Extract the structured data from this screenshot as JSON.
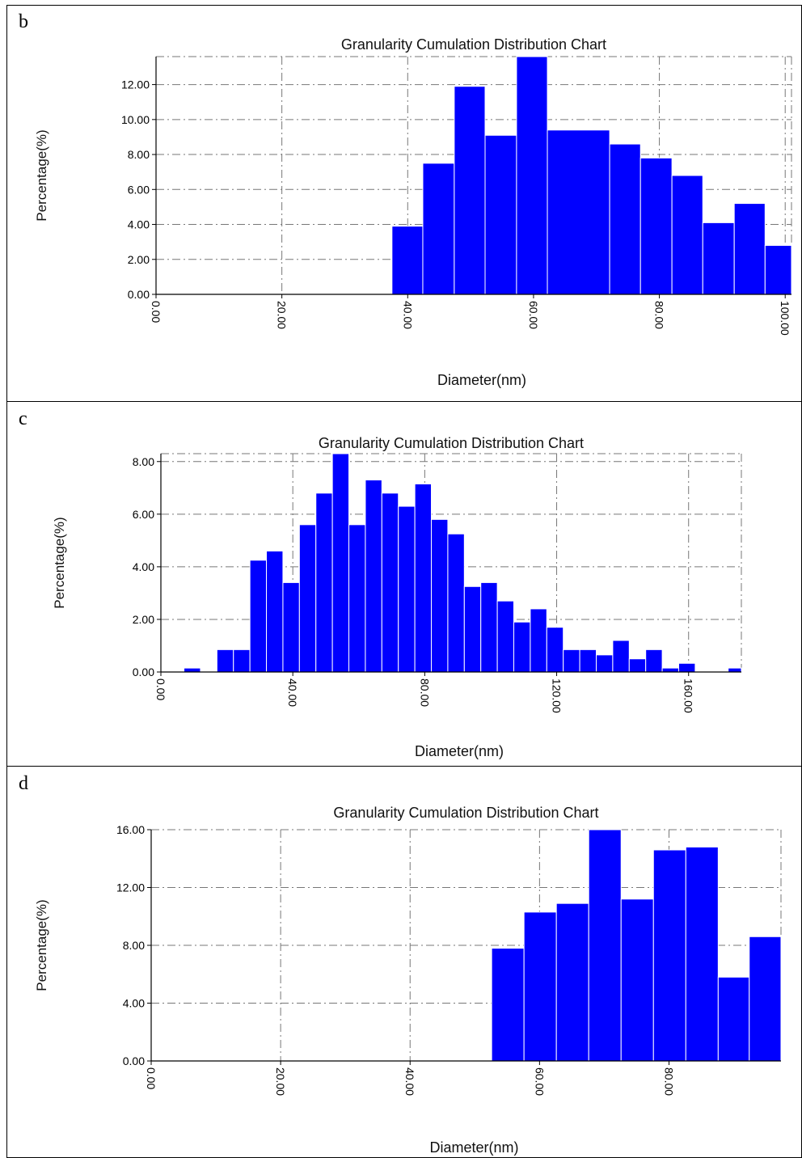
{
  "panels": [
    {
      "label": "b",
      "chart_data": {
        "type": "bar",
        "title": "Granularity Cumulation Distribution  Chart",
        "xlabel": "Diameter(nm)",
        "ylabel": "Percentage(%)",
        "xlim": [
          0,
          101
        ],
        "ylim": [
          0,
          13.6
        ],
        "x_ticks": [
          "0.00",
          "20.00",
          "40.00",
          "60.00",
          "80.00",
          "100.00"
        ],
        "x_tick_values": [
          0,
          20,
          40,
          60,
          80,
          100
        ],
        "y_ticks": [
          "0.00",
          "2.00",
          "4.00",
          "6.00",
          "8.00",
          "10.00",
          "12.00"
        ],
        "y_tick_values": [
          0,
          2,
          4,
          6,
          8,
          10,
          12
        ],
        "bin_edges": [
          37.5,
          42.4,
          47.4,
          52.3,
          57.3,
          62.2,
          72.1,
          77.0,
          82.0,
          86.9,
          91.9,
          96.8,
          101.0
        ],
        "values": [
          3.9,
          7.5,
          11.9,
          9.1,
          13.6,
          9.4,
          8.6,
          7.8,
          6.8,
          4.1,
          5.2,
          2.8
        ],
        "color": "#0000ff",
        "grid": true
      }
    },
    {
      "label": "c",
      "chart_data": {
        "type": "bar",
        "title": "Granularity Cumulation Distribution  Chart",
        "xlabel": "Diameter(nm)",
        "ylabel": "Percentage(%)",
        "xlim": [
          0,
          176
        ],
        "ylim": [
          0,
          8.3
        ],
        "x_ticks": [
          "0.00",
          "40.00",
          "80.00",
          "120.00",
          "160.00"
        ],
        "x_tick_values": [
          0,
          40,
          80,
          120,
          160
        ],
        "y_ticks": [
          "0.00",
          "2.00",
          "4.00",
          "6.00",
          "8.00"
        ],
        "y_tick_values": [
          0,
          2,
          4,
          6,
          8
        ],
        "bin_edges": [
          7,
          12,
          17,
          22,
          27,
          32,
          37,
          42,
          47,
          52,
          57,
          62,
          67,
          72,
          77,
          82,
          87,
          92,
          97,
          102,
          107,
          112,
          117,
          122,
          127,
          132,
          137,
          142,
          147,
          152,
          157,
          162,
          167,
          172,
          176
        ],
        "values": [
          0.15,
          0,
          0.85,
          0.85,
          4.25,
          4.6,
          3.4,
          5.6,
          6.8,
          8.3,
          5.6,
          7.3,
          6.8,
          6.3,
          7.15,
          5.8,
          5.25,
          3.25,
          3.4,
          2.7,
          1.9,
          2.4,
          1.7,
          0.85,
          0.85,
          0.65,
          1.2,
          0.5,
          0.85,
          0.15,
          0.33,
          0,
          0,
          0.15
        ],
        "color": "#0000ff",
        "grid": true
      }
    },
    {
      "label": "d",
      "chart_data": {
        "type": "bar",
        "title": "Granularity Cumulation Distribution  Chart",
        "xlabel": "Diameter(nm)",
        "ylabel": "Percentage(%)",
        "xlim": [
          0,
          97.3
        ],
        "ylim": [
          0,
          16
        ],
        "x_ticks": [
          "0.00",
          "20.00",
          "40.00",
          "60.00",
          "80.00"
        ],
        "x_tick_values": [
          0,
          20,
          40,
          60,
          80
        ],
        "y_ticks": [
          "0.00",
          "4.00",
          "8.00",
          "12.00",
          "16.00"
        ],
        "y_tick_values": [
          0,
          4,
          8,
          12,
          16
        ],
        "bin_edges": [
          52.6,
          57.6,
          62.6,
          67.6,
          72.6,
          77.6,
          82.6,
          87.6,
          92.4,
          97.3
        ],
        "values": [
          7.8,
          10.3,
          10.9,
          16.0,
          11.2,
          14.6,
          14.8,
          5.8,
          8.6
        ],
        "color": "#0000ff",
        "grid": true
      }
    }
  ]
}
